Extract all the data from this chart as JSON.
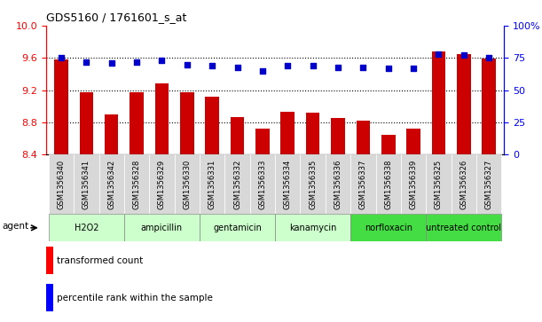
{
  "title": "GDS5160 / 1761601_s_at",
  "categories": [
    "GSM1356340",
    "GSM1356341",
    "GSM1356342",
    "GSM1356328",
    "GSM1356329",
    "GSM1356330",
    "GSM1356331",
    "GSM1356332",
    "GSM1356333",
    "GSM1356334",
    "GSM1356335",
    "GSM1356336",
    "GSM1356337",
    "GSM1356338",
    "GSM1356339",
    "GSM1356325",
    "GSM1356326",
    "GSM1356327"
  ],
  "bar_values": [
    9.58,
    9.17,
    8.9,
    9.17,
    9.28,
    9.17,
    9.12,
    8.87,
    8.72,
    8.93,
    8.92,
    8.85,
    8.82,
    8.65,
    8.72,
    9.68,
    9.65,
    9.59
  ],
  "percentile_values": [
    75,
    72,
    71,
    72,
    73,
    70,
    69,
    68,
    65,
    69,
    69,
    68,
    68,
    67,
    67,
    78,
    77,
    75
  ],
  "groups": [
    {
      "label": "H2O2",
      "start": 0,
      "end": 2,
      "color": "#ccffcc"
    },
    {
      "label": "ampicillin",
      "start": 3,
      "end": 5,
      "color": "#ccffcc"
    },
    {
      "label": "gentamicin",
      "start": 6,
      "end": 8,
      "color": "#ccffcc"
    },
    {
      "label": "kanamycin",
      "start": 9,
      "end": 11,
      "color": "#ccffcc"
    },
    {
      "label": "norfloxacin",
      "start": 12,
      "end": 14,
      "color": "#44dd44"
    },
    {
      "label": "untreated control",
      "start": 15,
      "end": 17,
      "color": "#44dd44"
    }
  ],
  "ylim_left": [
    8.4,
    10.0
  ],
  "ylim_right": [
    0,
    100
  ],
  "yticks_left_show": [
    8.4,
    8.8,
    9.2,
    9.6,
    10.0
  ],
  "yticks_right": [
    0,
    25,
    50,
    75,
    100
  ],
  "bar_color": "#cc0000",
  "dot_color": "#0000cc",
  "legend_bar_label": "transformed count",
  "legend_dot_label": "percentile rank within the sample",
  "agent_label": "agent",
  "tick_label_bg": "#d8d8d8",
  "dotted_lines": [
    8.8,
    9.2,
    9.6
  ]
}
